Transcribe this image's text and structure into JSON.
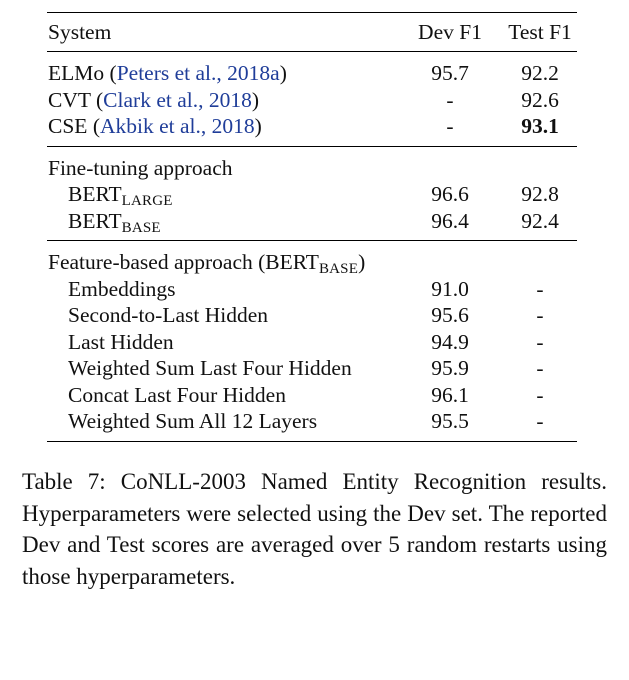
{
  "table": {
    "header": {
      "system": "System",
      "dev": "Dev F1",
      "test": "Test F1"
    },
    "group1": [
      {
        "name": "ELMo",
        "cite": "Peters et al., 2018a",
        "dev": "95.7",
        "test": "92.2",
        "test_bold": false
      },
      {
        "name": "CVT",
        "cite": "Clark et al., 2018",
        "dev": "-",
        "test": "92.6",
        "test_bold": false
      },
      {
        "name": "CSE",
        "cite": "Akbik et al., 2018",
        "dev": "-",
        "test": "93.1",
        "test_bold": true
      }
    ],
    "group2": {
      "title": "Fine-tuning approach",
      "rows": [
        {
          "name": "BERT",
          "sub": "LARGE",
          "dev": "96.6",
          "test": "92.8"
        },
        {
          "name": "BERT",
          "sub": "BASE",
          "dev": "96.4",
          "test": "92.4"
        }
      ]
    },
    "group3": {
      "title_prefix": "Feature-based approach (BERT",
      "title_sub": "BASE",
      "title_suffix": ")",
      "rows": [
        {
          "name": "Embeddings",
          "dev": "91.0",
          "test": "-"
        },
        {
          "name": "Second-to-Last Hidden",
          "dev": "95.6",
          "test": "-"
        },
        {
          "name": "Last Hidden",
          "dev": "94.9",
          "test": "-"
        },
        {
          "name": "Weighted Sum Last Four Hidden",
          "dev": "95.9",
          "test": "-"
        },
        {
          "name": "Concat Last Four Hidden",
          "dev": "96.1",
          "test": "-"
        },
        {
          "name": "Weighted Sum All 12 Layers",
          "dev": "95.5",
          "test": "-"
        }
      ]
    }
  },
  "caption": "Table 7: CoNLL-2003 Named Entity Recognition results. Hyperparameters were selected using the Dev set. The reported Dev and Test scores are averaged over 5 random restarts using those hyperparameters."
}
